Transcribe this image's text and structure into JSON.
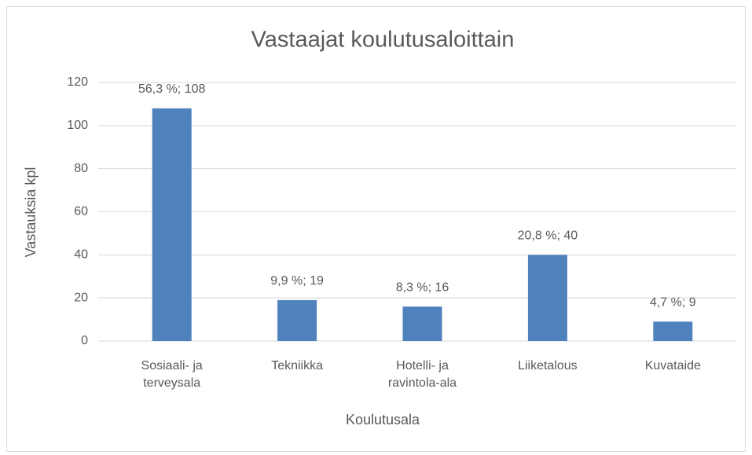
{
  "chart_data": {
    "type": "bar",
    "title": "Vastaajat koulutusaloittain",
    "x_label": "Koulutusala",
    "y_label": "Vastauksia kpl",
    "categories": [
      "Sosiaali- ja terveysala",
      "Tekniikka",
      "Hotelli- ja ravintola-ala",
      "Liiketalous",
      "Kuvataide"
    ],
    "values": [
      108,
      19,
      16,
      40,
      9
    ],
    "value_labels": [
      "56,3 %; 108",
      "9,9 %; 19",
      "8,3 %; 16",
      "20,8 %; 40",
      "4,7 %; 9"
    ],
    "color": "#4f81bd",
    "ylim": [
      0,
      120
    ],
    "yticks": [
      0,
      20,
      40,
      60,
      80,
      100,
      120
    ],
    "grid": true
  }
}
